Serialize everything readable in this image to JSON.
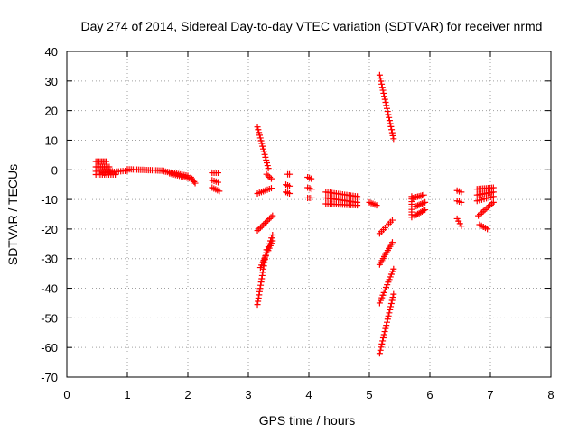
{
  "chart_data": {
    "type": "scatter",
    "title": "Day 274 of 2014, Sidereal Day-to-day VTEC variation (SDTVAR) for receiver nrmd",
    "xlabel": "GPS time / hours",
    "ylabel": "SDTVAR / TECUs",
    "xlim": [
      0,
      8
    ],
    "ylim": [
      -70,
      40
    ],
    "x_ticks": [
      "0",
      "1",
      "2",
      "3",
      "4",
      "5",
      "6",
      "7",
      "8"
    ],
    "y_ticks": [
      "40",
      "30",
      "20",
      "10",
      "0",
      "-10",
      "-20",
      "-30",
      "-40",
      "-50",
      "-60",
      "-70"
    ],
    "grid": true,
    "marker": "+",
    "marker_color": "#ff0000",
    "segments": [
      {
        "from": [
          0.48,
          2.8
        ],
        "to": [
          0.65,
          2.8
        ],
        "n": 8
      },
      {
        "from": [
          0.48,
          1.0
        ],
        "to": [
          0.7,
          1.0
        ],
        "n": 9
      },
      {
        "from": [
          0.48,
          -0.5
        ],
        "to": [
          0.75,
          -0.5
        ],
        "n": 10
      },
      {
        "from": [
          0.48,
          -1.6
        ],
        "to": [
          0.8,
          -1.6
        ],
        "n": 10
      },
      {
        "from": [
          0.6,
          -1.0
        ],
        "to": [
          1.0,
          -0.3
        ],
        "n": 12
      },
      {
        "from": [
          1.0,
          0.2
        ],
        "to": [
          1.6,
          -0.3
        ],
        "n": 20
      },
      {
        "from": [
          1.6,
          -0.5
        ],
        "to": [
          2.0,
          -2.0
        ],
        "n": 14
      },
      {
        "from": [
          1.7,
          -1.2
        ],
        "to": [
          2.05,
          -3.0
        ],
        "n": 12
      },
      {
        "from": [
          2.05,
          -2.5
        ],
        "to": [
          2.12,
          -4.5
        ],
        "n": 5
      },
      {
        "from": [
          2.4,
          -1.0
        ],
        "to": [
          2.5,
          -1.0
        ],
        "n": 4
      },
      {
        "from": [
          2.4,
          -3.5
        ],
        "to": [
          2.5,
          -4.2
        ],
        "n": 4
      },
      {
        "from": [
          2.4,
          -6.0
        ],
        "to": [
          2.52,
          -7.2
        ],
        "n": 5
      },
      {
        "from": [
          3.15,
          14.5
        ],
        "to": [
          3.33,
          0.5
        ],
        "n": 16
      },
      {
        "from": [
          3.3,
          -1.5
        ],
        "to": [
          3.38,
          -3.0
        ],
        "n": 4
      },
      {
        "from": [
          3.15,
          -8.0
        ],
        "to": [
          3.38,
          -6.2
        ],
        "n": 8
      },
      {
        "from": [
          3.15,
          -20.5
        ],
        "to": [
          3.4,
          -15.5
        ],
        "n": 11
      },
      {
        "from": [
          3.15,
          -45.5
        ],
        "to": [
          3.3,
          -27.0
        ],
        "n": 18
      },
      {
        "from": [
          3.2,
          -33.0
        ],
        "to": [
          3.4,
          -24.0
        ],
        "n": 12
      },
      {
        "from": [
          3.25,
          -31.0
        ],
        "to": [
          3.4,
          -22.0
        ],
        "n": 10
      },
      {
        "from": [
          3.65,
          -1.5
        ],
        "to": [
          3.68,
          -1.5
        ],
        "n": 2
      },
      {
        "from": [
          3.62,
          -5.0
        ],
        "to": [
          3.68,
          -5.5
        ],
        "n": 3
      },
      {
        "from": [
          3.62,
          -7.5
        ],
        "to": [
          3.68,
          -8.0
        ],
        "n": 3
      },
      {
        "from": [
          3.98,
          -2.5
        ],
        "to": [
          4.04,
          -3.0
        ],
        "n": 3
      },
      {
        "from": [
          3.98,
          -6.0
        ],
        "to": [
          4.05,
          -6.5
        ],
        "n": 3
      },
      {
        "from": [
          3.98,
          -9.5
        ],
        "to": [
          4.05,
          -9.5
        ],
        "n": 3
      },
      {
        "from": [
          4.28,
          -7.5
        ],
        "to": [
          4.8,
          -9.0
        ],
        "n": 16
      },
      {
        "from": [
          4.28,
          -9.5
        ],
        "to": [
          4.8,
          -11.0
        ],
        "n": 16
      },
      {
        "from": [
          4.28,
          -11.5
        ],
        "to": [
          4.8,
          -12.0
        ],
        "n": 16
      },
      {
        "from": [
          5.0,
          -11.0
        ],
        "to": [
          5.12,
          -12.0
        ],
        "n": 5
      },
      {
        "from": [
          5.17,
          32.0
        ],
        "to": [
          5.4,
          10.5
        ],
        "n": 22
      },
      {
        "from": [
          5.17,
          -21.5
        ],
        "to": [
          5.38,
          -17.0
        ],
        "n": 8
      },
      {
        "from": [
          5.17,
          -32.0
        ],
        "to": [
          5.38,
          -24.5
        ],
        "n": 12
      },
      {
        "from": [
          5.17,
          -45.0
        ],
        "to": [
          5.4,
          -33.5
        ],
        "n": 14
      },
      {
        "from": [
          5.17,
          -62.0
        ],
        "to": [
          5.4,
          -42.0
        ],
        "n": 20
      },
      {
        "from": [
          5.7,
          -9.0
        ],
        "to": [
          5.7,
          -16.0
        ],
        "n": 9
      },
      {
        "from": [
          5.72,
          -9.5
        ],
        "to": [
          5.9,
          -8.5
        ],
        "n": 8
      },
      {
        "from": [
          5.75,
          -12.5
        ],
        "to": [
          5.92,
          -11.0
        ],
        "n": 8
      },
      {
        "from": [
          5.75,
          -15.5
        ],
        "to": [
          5.92,
          -13.5
        ],
        "n": 8
      },
      {
        "from": [
          6.45,
          -7.0
        ],
        "to": [
          6.52,
          -7.5
        ],
        "n": 3
      },
      {
        "from": [
          6.45,
          -10.5
        ],
        "to": [
          6.52,
          -11.0
        ],
        "n": 3
      },
      {
        "from": [
          6.45,
          -16.5
        ],
        "to": [
          6.52,
          -19.0
        ],
        "n": 4
      },
      {
        "from": [
          6.78,
          -6.5
        ],
        "to": [
          7.05,
          -6.0
        ],
        "n": 10
      },
      {
        "from": [
          6.78,
          -8.5
        ],
        "to": [
          7.05,
          -7.5
        ],
        "n": 10
      },
      {
        "from": [
          6.78,
          -10.5
        ],
        "to": [
          7.05,
          -9.0
        ],
        "n": 8
      },
      {
        "from": [
          6.8,
          -15.5
        ],
        "to": [
          7.05,
          -11.0
        ],
        "n": 10
      },
      {
        "from": [
          6.82,
          -18.5
        ],
        "to": [
          6.95,
          -20.0
        ],
        "n": 5
      }
    ]
  }
}
